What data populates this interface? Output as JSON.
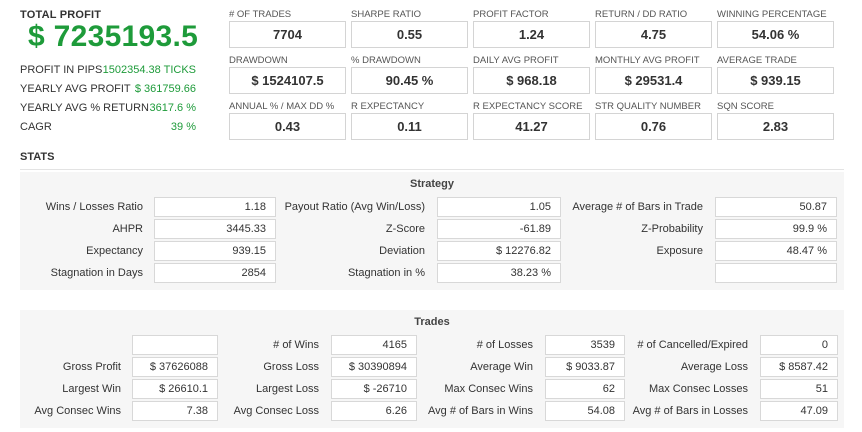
{
  "header": {
    "total_profit_label": "TOTAL PROFIT",
    "total_profit_value": "$ 7235193.5"
  },
  "summary": [
    {
      "label": "PROFIT IN PIPS",
      "value": "1502354.38 TICKS"
    },
    {
      "label": "YEARLY AVG PROFIT",
      "value": "$ 361759.66"
    },
    {
      "label": "YEARLY AVG % RETURN",
      "value": "3617.6 %"
    },
    {
      "label": "CAGR",
      "value": "39 %"
    }
  ],
  "metrics": [
    {
      "label": "# OF TRADES",
      "value": "7704"
    },
    {
      "label": "SHARPE RATIO",
      "value": "0.55"
    },
    {
      "label": "PROFIT FACTOR",
      "value": "1.24"
    },
    {
      "label": "RETURN / DD RATIO",
      "value": "4.75"
    },
    {
      "label": "WINNING PERCENTAGE",
      "value": "54.06 %"
    },
    {
      "label": "DRAWDOWN",
      "value": "$ 1524107.5"
    },
    {
      "label": "% DRAWDOWN",
      "value": "90.45 %"
    },
    {
      "label": "DAILY AVG PROFIT",
      "value": "$ 968.18"
    },
    {
      "label": "MONTHLY AVG PROFIT",
      "value": "$ 29531.4"
    },
    {
      "label": "AVERAGE TRADE",
      "value": "$ 939.15"
    },
    {
      "label": "ANNUAL % / MAX DD %",
      "value": "0.43"
    },
    {
      "label": "R EXPECTANCY",
      "value": "0.11"
    },
    {
      "label": "R EXPECTANCY SCORE",
      "value": "41.27"
    },
    {
      "label": "STR QUALITY NUMBER",
      "value": "0.76"
    },
    {
      "label": "SQN SCORE",
      "value": "2.83"
    }
  ],
  "stats_title": "STATS",
  "strategy": {
    "title": "Strategy",
    "rows": [
      [
        {
          "label": "Wins / Losses Ratio",
          "value": "1.18"
        },
        {
          "label": "Payout Ratio (Avg Win/Loss)",
          "value": "1.05"
        },
        {
          "label": "Average # of Bars in Trade",
          "value": "50.87"
        }
      ],
      [
        {
          "label": "AHPR",
          "value": "3445.33"
        },
        {
          "label": "Z-Score",
          "value": "-61.89"
        },
        {
          "label": "Z-Probability",
          "value": "99.9 %"
        }
      ],
      [
        {
          "label": "Expectancy",
          "value": "939.15"
        },
        {
          "label": "Deviation",
          "value": "$ 12276.82"
        },
        {
          "label": "Exposure",
          "value": "48.47 %"
        }
      ],
      [
        {
          "label": "Stagnation in Days",
          "value": "2854"
        },
        {
          "label": "Stagnation in %",
          "value": "38.23 %"
        },
        {
          "label": "",
          "value": ""
        }
      ]
    ]
  },
  "trades": {
    "title": "Trades",
    "rows": [
      [
        {
          "label": "",
          "value": ""
        },
        {
          "label": "# of Wins",
          "value": "4165"
        },
        {
          "label": "# of Losses",
          "value": "3539"
        },
        {
          "label": "# of Cancelled/Expired",
          "value": "0"
        }
      ],
      [
        {
          "label": "Gross Profit",
          "value": "$ 37626088"
        },
        {
          "label": "Gross Loss",
          "value": "$ 30390894"
        },
        {
          "label": "Average Win",
          "value": "$ 9033.87"
        },
        {
          "label": "Average Loss",
          "value": "$ 8587.42"
        }
      ],
      [
        {
          "label": "Largest Win",
          "value": "$ 26610.1"
        },
        {
          "label": "Largest Loss",
          "value": "$ -26710"
        },
        {
          "label": "Max Consec Wins",
          "value": "62"
        },
        {
          "label": "Max Consec Losses",
          "value": "51"
        }
      ],
      [
        {
          "label": "Avg Consec Wins",
          "value": "7.38"
        },
        {
          "label": "Avg Consec Loss",
          "value": "6.26"
        },
        {
          "label": "Avg # of Bars in Wins",
          "value": "54.08"
        },
        {
          "label": "Avg # of Bars in Losses",
          "value": "47.09"
        }
      ]
    ]
  }
}
